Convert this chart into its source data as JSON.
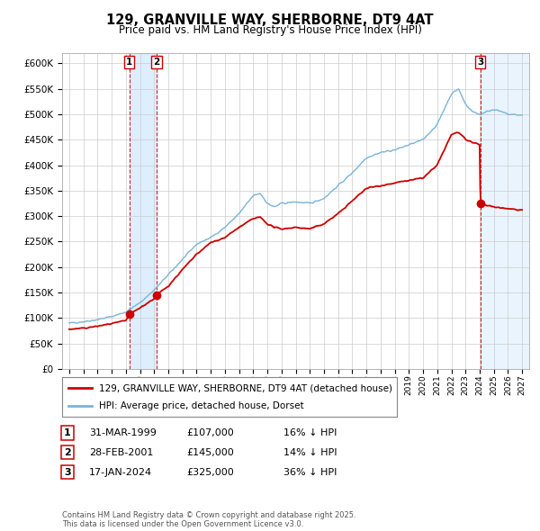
{
  "title": "129, GRANVILLE WAY, SHERBORNE, DT9 4AT",
  "subtitle": "Price paid vs. HM Land Registry's House Price Index (HPI)",
  "legend_line1": "129, GRANVILLE WAY, SHERBORNE, DT9 4AT (detached house)",
  "legend_line2": "HPI: Average price, detached house, Dorset",
  "transaction1_label": "1",
  "transaction1_date": "31-MAR-1999",
  "transaction1_price": "£107,000",
  "transaction1_hpi": "16% ↓ HPI",
  "transaction2_label": "2",
  "transaction2_date": "28-FEB-2001",
  "transaction2_price": "£145,000",
  "transaction2_hpi": "14% ↓ HPI",
  "transaction3_label": "3",
  "transaction3_date": "17-JAN-2024",
  "transaction3_price": "£325,000",
  "transaction3_hpi": "36% ↓ HPI",
  "footer": "Contains HM Land Registry data © Crown copyright and database right 2025.\nThis data is licensed under the Open Government Licence v3.0.",
  "hpi_color": "#7ab4d8",
  "price_color": "#cc0000",
  "vline_color": "#cc0000",
  "shade_color": "#ddeeff",
  "background_color": "#ffffff",
  "grid_color": "#cccccc",
  "ylim": [
    0,
    620000
  ],
  "yticks": [
    0,
    50000,
    100000,
    150000,
    200000,
    250000,
    300000,
    350000,
    400000,
    450000,
    500000,
    550000,
    600000
  ],
  "xlim_start": 1994.5,
  "xlim_end": 2027.5,
  "transaction1_x": 1999.25,
  "transaction2_x": 2001.17,
  "transaction3_x": 2024.05,
  "transaction1_y": 107000,
  "transaction2_y": 145000,
  "transaction3_y": 325000
}
